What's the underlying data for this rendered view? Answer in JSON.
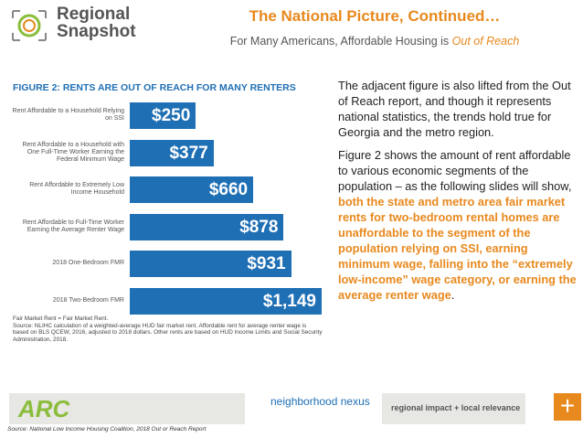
{
  "header": {
    "logo": "Regional Snapshot",
    "title": "The National Picture, Continued…",
    "subtitle": "For Many Americans, Affordable Housing is ",
    "subtitle_emphasis": "Out of Reach"
  },
  "chart_data": {
    "type": "bar",
    "orientation": "horizontal",
    "title": "FIGURE 2: RENTS ARE OUT OF REACH FOR MANY RENTERS",
    "color": "#1f6fb5",
    "categories": [
      "Rent Affordable to a Household Relying on SSI",
      "Rent Affordable to a Household with One Full-Time Worker Earning the Federal Minimum Wage",
      "Rent Affordable to Extremely Low Income Household",
      "Rent Affordable to Full-Time Worker Earning the Average Renter Wage",
      "2018 One-Bedroom FMR",
      "2018 Two-Bedroom FMR"
    ],
    "values": [
      250,
      377,
      660,
      878,
      931,
      1149
    ],
    "value_labels": [
      "$250",
      "$377",
      "$660",
      "$878",
      "$931",
      "$1,149"
    ],
    "notes": [
      "Fair Market Rent = Fair Market Rent.",
      "Source: NLIHC calculation of a weighted-average HUD fair market rent. Affordable rent for average renter wage is based on BLS QCEW, 2016, adjusted to 2018 dollars. Other rents are based on HUD Income Limits and Social Security Administration, 2018."
    ]
  },
  "body": {
    "paragraphs": [
      [
        "The adjacent figure is also lifted from the Out of Reach report, and though it represents national statistics, the trends hold true for Georgia and the metro region."
      ],
      [
        "Figure 2 shows the amount of rent affordable to various economic segments of the population – as the following slides will show, ",
        "both the state and metro area fair market rents for two-bedroom rental homes are unaffordable to the segment of the population relying on SSI, earning minimum wage, falling into the “extremely low-income” wage category, or earning the average renter wage",
        ". "
      ]
    ]
  },
  "footer": {
    "logo_left": "ARC",
    "logo_middle": "neighborhood nexus",
    "tagline": "regional impact + local relevance",
    "button": "+",
    "source": "Source: National Low Income Housing Coalition, 2018 Out or Reach Report"
  }
}
